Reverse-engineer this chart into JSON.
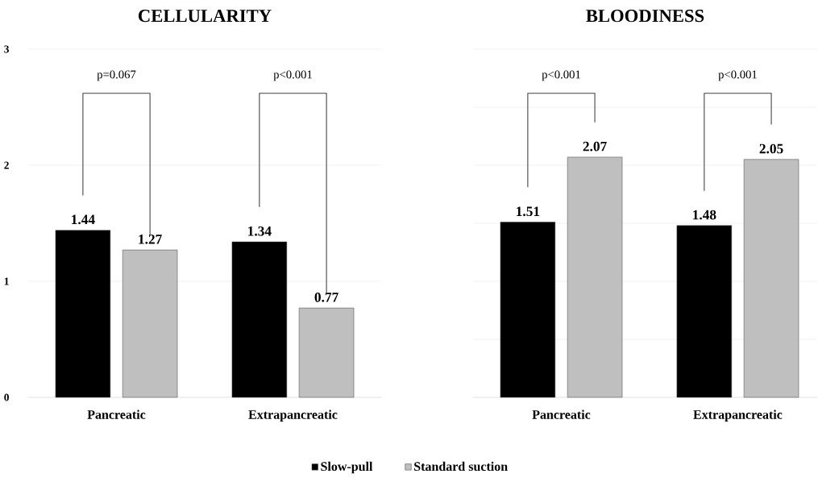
{
  "chart_data": [
    {
      "type": "bar",
      "title": "CELLULARITY",
      "categories": [
        "Pancreatic",
        "Extrapancreatic"
      ],
      "series": [
        {
          "name": "Slow-pull",
          "color": "#000000",
          "values": [
            1.44,
            1.34
          ]
        },
        {
          "name": "Standard suction",
          "color": "#bfbfbf",
          "values": [
            1.27,
            0.77
          ]
        }
      ],
      "ylim": [
        0,
        3
      ],
      "yticks": [
        0,
        1,
        2,
        3
      ],
      "grid": "y",
      "data_labels": true,
      "legend": "bottom",
      "annotations": [
        "p=0.067",
        "p<0.001"
      ]
    },
    {
      "type": "bar",
      "title": "BLOODINESS",
      "categories": [
        "Pancreatic",
        "Extrapancreatic"
      ],
      "series": [
        {
          "color": "#000000",
          "values": [
            1.51,
            1.48
          ]
        },
        {
          "color": "#bfbfbf",
          "values": [
            2.07,
            2.05
          ]
        }
      ],
      "ylim": [
        0,
        3
      ],
      "yticks": [
        {
          "value": 0,
          "label": null
        },
        {
          "value": 0.5,
          "label": null
        },
        {
          "value": 1,
          "label": null
        },
        {
          "value": 1.5,
          "label": null
        },
        {
          "value": 2,
          "label": null
        },
        {
          "value": 2.5,
          "label": null
        },
        {
          "value": 3,
          "label": null
        }
      ],
      "grid": "y",
      "tick_labels": "x",
      "data_labels": true,
      "annotations": [
        "p<0.001",
        "p<0.001"
      ]
    }
  ]
}
